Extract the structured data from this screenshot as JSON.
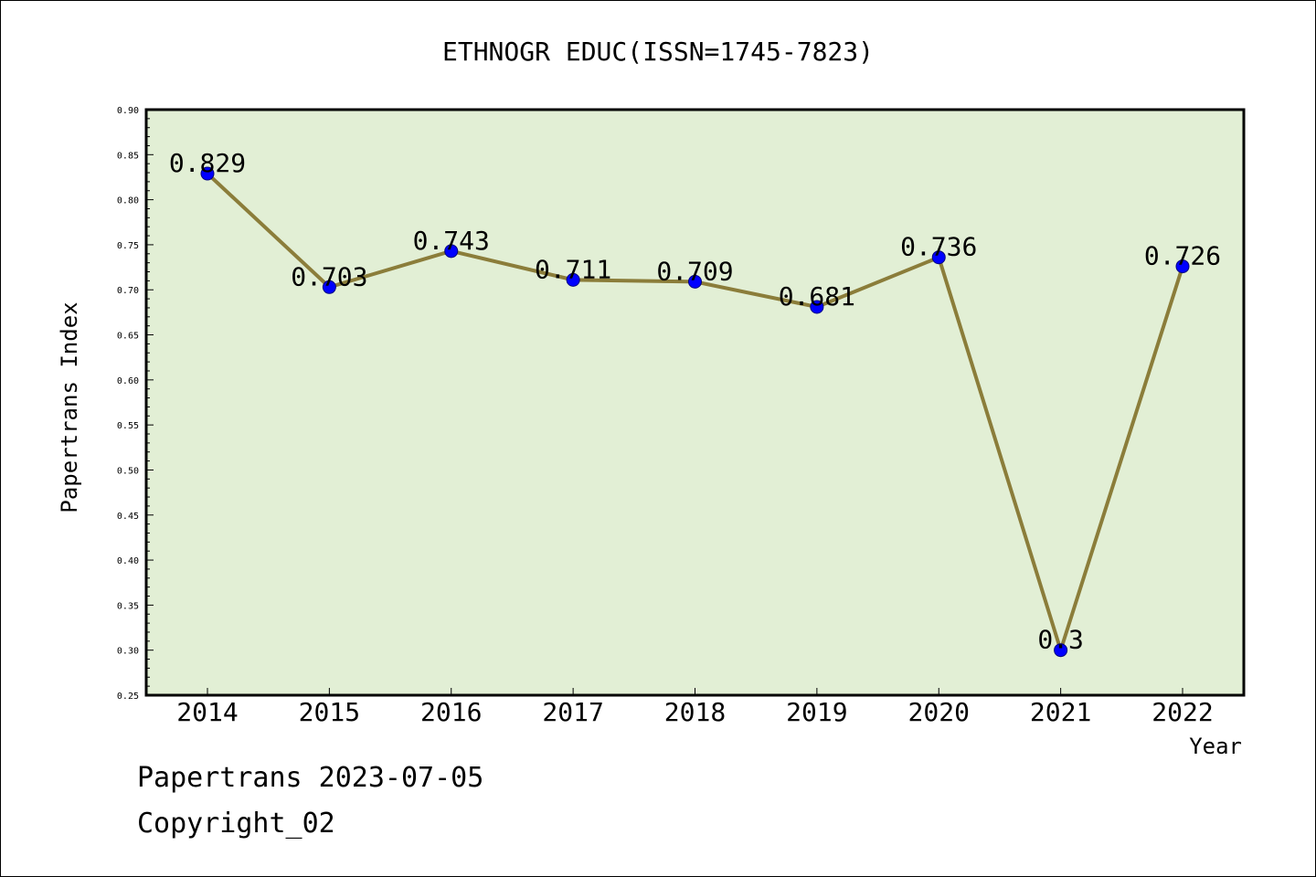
{
  "chart_data": {
    "type": "line",
    "title": "ETHNOGR EDUC(ISSN=1745-7823)",
    "xlabel": "Year",
    "ylabel": "Papertrans Index",
    "categories": [
      "2014",
      "2015",
      "2016",
      "2017",
      "2018",
      "2019",
      "2020",
      "2021",
      "2022"
    ],
    "values": [
      0.829,
      0.703,
      0.743,
      0.711,
      0.709,
      0.681,
      0.736,
      0.3,
      0.726
    ],
    "data_labels": [
      "0.829",
      "0.703",
      "0.743",
      "0.711",
      "0.709",
      "0.681",
      "0.736",
      "0.3",
      "0.726"
    ],
    "ylim": [
      0.25,
      0.9
    ],
    "yticks": [
      "0.25",
      "0.30",
      "0.35",
      "0.40",
      "0.45",
      "0.50",
      "0.55",
      "0.60",
      "0.65",
      "0.70",
      "0.75",
      "0.80",
      "0.85",
      "0.90"
    ],
    "grid": false,
    "legend": "none",
    "colors": {
      "plot_background": "#e2efd5",
      "line": "#8b7d3a",
      "marker": "#0000ff",
      "marker_edge": "#000080",
      "axes": "#000000"
    }
  },
  "footer": {
    "line1": "Papertrans 2023-07-05",
    "line2": "Copyright_02"
  }
}
